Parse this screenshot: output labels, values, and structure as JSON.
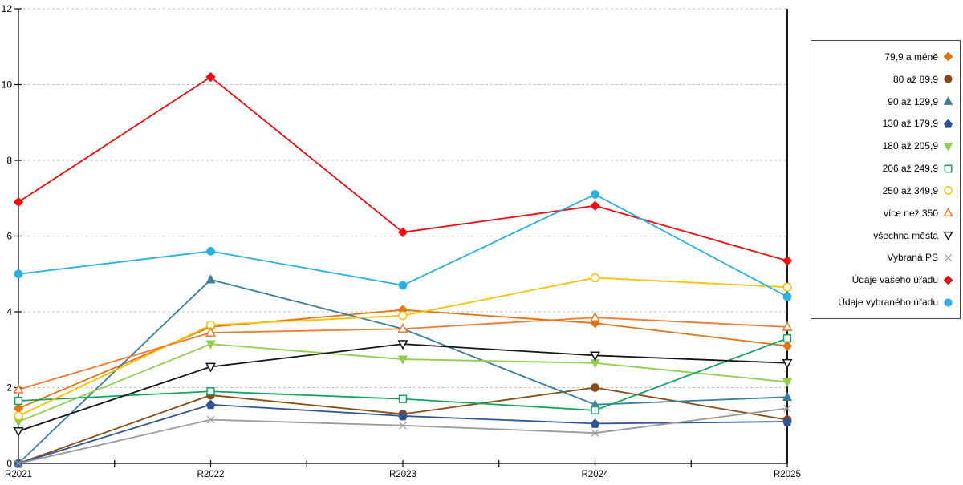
{
  "chart_data": {
    "type": "line",
    "title": "",
    "xlabel": "",
    "ylabel": "",
    "categories": [
      "R2021",
      "R2022",
      "R2023",
      "R2024",
      "R2025"
    ],
    "y_ticks": [
      "0",
      "2",
      "4",
      "6",
      "8",
      "10",
      "12"
    ],
    "ylim": [
      0,
      12
    ],
    "grid": "horizontal-dashed",
    "legend_position": "right",
    "series": [
      {
        "name": "79,9 a méně",
        "marker": "diamond",
        "fill": "filled",
        "color": "#E4720F",
        "values": [
          1.45,
          3.6,
          4.05,
          3.7,
          3.1
        ]
      },
      {
        "name": "80 až 89,9",
        "marker": "circle",
        "fill": "filled",
        "color": "#8A4B13",
        "values": [
          0,
          1.8,
          1.3,
          2.0,
          1.15
        ]
      },
      {
        "name": "90 až 129,9",
        "marker": "triangle-up",
        "fill": "filled",
        "color": "#38809E",
        "values": [
          0,
          4.85,
          3.55,
          1.55,
          1.75
        ]
      },
      {
        "name": "130 až 179,9",
        "marker": "pentagon",
        "fill": "filled",
        "color": "#2E5697",
        "values": [
          0,
          1.55,
          1.25,
          1.05,
          1.1
        ]
      },
      {
        "name": "180 až 205,9",
        "marker": "triangle-down",
        "fill": "filled",
        "color": "#90CF4E",
        "values": [
          1.1,
          3.15,
          2.75,
          2.65,
          2.15
        ]
      },
      {
        "name": "206 až 249,9",
        "marker": "square",
        "fill": "open",
        "color": "#10A45F",
        "values": [
          1.65,
          1.9,
          1.7,
          1.4,
          3.3
        ]
      },
      {
        "name": "250 až 349,9",
        "marker": "circle",
        "fill": "open",
        "color": "#FFC000",
        "values": [
          1.25,
          3.65,
          3.9,
          4.9,
          4.65
        ]
      },
      {
        "name": "více než 350",
        "marker": "triangle-up",
        "fill": "open",
        "color": "#F1772C",
        "values": [
          1.95,
          3.45,
          3.55,
          3.85,
          3.6
        ]
      },
      {
        "name": "všechna města",
        "marker": "triangle-down",
        "fill": "open",
        "color": "#141414",
        "values": [
          0.85,
          2.55,
          3.15,
          2.85,
          2.65
        ]
      },
      {
        "name": "Vybraná PS",
        "marker": "x",
        "fill": "open",
        "color": "#9A9A9A",
        "values": [
          0,
          1.15,
          1.0,
          0.8,
          1.45
        ]
      },
      {
        "name": "Údaje vašeho úřadu",
        "marker": "diamond",
        "fill": "filled",
        "color": "#F40A0A",
        "values": [
          6.9,
          10.2,
          6.1,
          6.8,
          5.35
        ]
      },
      {
        "name": "Údaje vybraného úřadu",
        "marker": "circle",
        "fill": "filled",
        "color": "#27B1E6",
        "values": [
          5.0,
          5.6,
          4.7,
          7.1,
          4.4
        ]
      }
    ],
    "axis_color": "#000000",
    "gridline_color": "#BFBFBF"
  }
}
